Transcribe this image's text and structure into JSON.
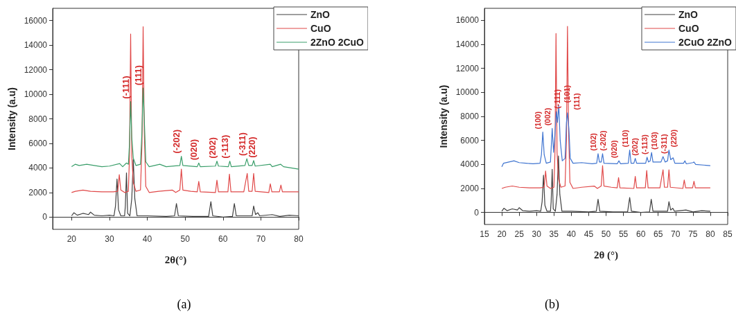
{
  "chart_data": [
    {
      "type": "line",
      "xlabel": "2θ(°)",
      "ylabel": "Intensity (a.u)",
      "xlim": [
        15,
        80
      ],
      "xticks": [
        20,
        30,
        40,
        50,
        60,
        70,
        80
      ],
      "ylim": [
        -1000,
        17000
      ],
      "yticks": [
        0,
        2000,
        4000,
        6000,
        8000,
        10000,
        12000,
        14000,
        16000
      ],
      "legend": "top right",
      "marker": "none",
      "series": [
        {
          "name": "ZnO",
          "color": "#404040",
          "x": [
            20,
            20.6,
            21.5,
            23,
            24.5,
            25,
            26,
            28,
            30,
            31.2,
            31.6,
            32.0,
            32.4,
            33,
            34.0,
            34.2,
            34.5,
            34.8,
            35.4,
            35.9,
            36.3,
            36.7,
            37.3,
            40,
            45,
            47.2,
            47.7,
            48.2,
            52,
            56.2,
            56.8,
            57.3,
            60,
            62.5,
            63.0,
            63.5,
            66,
            67.7,
            68.1,
            68.6,
            69.2,
            69.7,
            73,
            75,
            77.5,
            80
          ],
          "values": [
            100,
            350,
            150,
            300,
            200,
            400,
            150,
            100,
            150,
            100,
            900,
            3100,
            600,
            100,
            100,
            900,
            3600,
            300,
            100,
            1500,
            4700,
            1500,
            100,
            100,
            50,
            100,
            1100,
            100,
            50,
            50,
            1250,
            100,
            0,
            50,
            1100,
            100,
            100,
            100,
            900,
            200,
            350,
            100,
            200,
            50,
            150,
            100
          ]
        },
        {
          "name": "CuO",
          "color": "#e04848",
          "x": [
            20,
            21,
            23,
            25,
            28,
            31,
            32.2,
            32.6,
            33.0,
            34,
            35.0,
            35.3,
            35.6,
            35.9,
            36.3,
            37,
            38.2,
            38.6,
            38.9,
            39.2,
            39.6,
            40.5,
            43,
            46.6,
            47.5,
            48.6,
            49.0,
            49.4,
            51.5,
            53.2,
            53.6,
            54.0,
            58.0,
            58.4,
            58.8,
            61.3,
            61.7,
            62.1,
            65.5,
            66.0,
            66.4,
            66.8,
            67.7,
            68.1,
            68.5,
            72.1,
            72.5,
            72.9,
            74.9,
            75.3,
            75.7,
            80
          ],
          "values": [
            2000,
            2100,
            2200,
            2100,
            2050,
            2050,
            2100,
            3450,
            2200,
            2000,
            2100,
            5000,
            14900,
            5000,
            2800,
            2100,
            2200,
            6000,
            15500,
            7000,
            2500,
            2000,
            2100,
            2200,
            2000,
            2200,
            3900,
            2200,
            2100,
            2050,
            2900,
            2050,
            2000,
            3000,
            2050,
            2050,
            3500,
            2050,
            2050,
            2900,
            3550,
            2100,
            2100,
            3550,
            2100,
            2000,
            2700,
            2050,
            2050,
            2600,
            2050,
            2050
          ]
        },
        {
          "name": "2ZnO 2CuO",
          "color": "#3a9e6a",
          "x": [
            20,
            21,
            22,
            24,
            26,
            28,
            30,
            32.7,
            33.5,
            34.5,
            35.0,
            35.3,
            35.6,
            35.9,
            36.3,
            37,
            38.2,
            38.6,
            38.9,
            39.2,
            39.6,
            40.5,
            43.3,
            45,
            48.6,
            49.0,
            49.4,
            53.2,
            53.6,
            54,
            58.0,
            58.4,
            58.8,
            61.4,
            61.8,
            62.2,
            65.8,
            66.3,
            66.8,
            67.7,
            68.1,
            68.5,
            72.5,
            73,
            75.2,
            76,
            80
          ],
          "values": [
            4100,
            4300,
            4200,
            4300,
            4200,
            4100,
            4150,
            4350,
            4100,
            4400,
            4300,
            6000,
            9400,
            6500,
            4800,
            4200,
            4300,
            7000,
            10500,
            8000,
            4500,
            4100,
            4300,
            4100,
            4200,
            4950,
            4200,
            4100,
            4400,
            4100,
            4150,
            4550,
            4150,
            4100,
            4550,
            4100,
            4200,
            4750,
            4200,
            4200,
            4600,
            4150,
            4300,
            4100,
            4300,
            4100,
            3900
          ]
        }
      ],
      "annotations": [
        {
          "text": "(-111)",
          "x": 35.6,
          "y": 9400
        },
        {
          "text": "(111)",
          "x": 38.9,
          "y": 10500
        },
        {
          "text": "(-202)",
          "x": 49.0,
          "y": 4950
        },
        {
          "text": "(020)",
          "x": 53.6,
          "y": 4400
        },
        {
          "text": "(202)",
          "x": 58.4,
          "y": 4550
        },
        {
          "text": "(-113)",
          "x": 61.8,
          "y": 4550
        },
        {
          "text": "(-311)",
          "x": 66.3,
          "y": 4750
        },
        {
          "text": "(220)",
          "x": 68.1,
          "y": 4600
        },
        "(a)"
      ]
    },
    {
      "type": "line",
      "xlabel": "2θ (°)",
      "ylabel": "Intensity (a.u)",
      "xlim": [
        15,
        85
      ],
      "xticks": [
        15,
        20,
        25,
        30,
        35,
        40,
        45,
        50,
        55,
        60,
        65,
        70,
        75,
        80,
        85
      ],
      "ylim": [
        -1000,
        17000
      ],
      "yticks": [
        0,
        2000,
        4000,
        6000,
        8000,
        10000,
        12000,
        14000,
        16000
      ],
      "legend": "top right",
      "marker": "none",
      "series": [
        {
          "name": "ZnO",
          "color": "#404040",
          "x": [
            20,
            20.6,
            21.5,
            23,
            24.5,
            25,
            26,
            28,
            30,
            31.2,
            31.6,
            32.0,
            32.4,
            33,
            34.0,
            34.2,
            34.5,
            34.8,
            35.4,
            35.9,
            36.3,
            36.7,
            37.3,
            40,
            45,
            47.2,
            47.7,
            48.2,
            52,
            56.2,
            56.8,
            57.3,
            60,
            62.5,
            63.0,
            63.5,
            66,
            67.7,
            68.1,
            68.6,
            69.2,
            69.7,
            73,
            75,
            77.5,
            80
          ],
          "values": [
            100,
            350,
            150,
            300,
            200,
            400,
            150,
            100,
            150,
            100,
            900,
            3100,
            600,
            100,
            100,
            900,
            3600,
            300,
            100,
            1500,
            4700,
            1500,
            100,
            100,
            50,
            100,
            1100,
            100,
            50,
            50,
            1250,
            100,
            0,
            50,
            1100,
            100,
            100,
            100,
            900,
            200,
            350,
            100,
            200,
            50,
            150,
            100
          ]
        },
        {
          "name": "CuO",
          "color": "#e04848",
          "x": [
            20,
            21,
            23,
            25,
            28,
            31,
            32.2,
            32.6,
            33.0,
            34,
            35.0,
            35.3,
            35.6,
            35.9,
            36.3,
            37,
            38.2,
            38.6,
            38.9,
            39.2,
            39.6,
            40.5,
            43,
            46.6,
            47.5,
            48.6,
            49.0,
            49.4,
            51.5,
            53.2,
            53.6,
            54.0,
            58.0,
            58.4,
            58.8,
            61.3,
            61.7,
            62.1,
            65.5,
            66.0,
            66.4,
            66.8,
            67.7,
            68.1,
            68.5,
            72.1,
            72.5,
            72.9,
            74.9,
            75.3,
            75.7,
            80
          ],
          "values": [
            2000,
            2100,
            2200,
            2100,
            2050,
            2050,
            2100,
            3450,
            2200,
            2000,
            2100,
            5000,
            14900,
            5000,
            2800,
            2100,
            2200,
            6000,
            15500,
            7000,
            2500,
            2000,
            2100,
            2200,
            2000,
            2200,
            3900,
            2200,
            2100,
            2050,
            2900,
            2050,
            2000,
            3000,
            2050,
            2050,
            3500,
            2050,
            2050,
            2900,
            3550,
            2100,
            2100,
            3550,
            2100,
            2000,
            2700,
            2050,
            2050,
            2600,
            2050,
            2050
          ]
        },
        {
          "name": "2CuO 2ZnO",
          "color": "#3f74d0",
          "x": [
            20,
            20.5,
            22,
            23.5,
            25,
            27,
            29,
            31.0,
            31.4,
            31.8,
            32.2,
            32.8,
            34.0,
            34.5,
            34.9,
            35.3,
            35.7,
            36.0,
            36.4,
            36.8,
            37.4,
            38.2,
            38.6,
            38.9,
            39.3,
            39.7,
            40.5,
            43,
            46,
            47.3,
            47.7,
            48.1,
            48.6,
            49.0,
            49.4,
            53.2,
            53.7,
            54.2,
            56.4,
            56.8,
            57.2,
            58.0,
            58.4,
            58.8,
            61.4,
            61.8,
            62.2,
            62.7,
            63.1,
            63.5,
            65.8,
            66.4,
            67.0,
            67.7,
            68.1,
            68.6,
            69.3,
            69.8,
            72.3,
            72.7,
            73.1,
            75.0,
            75.3,
            75.8,
            80
          ],
          "values": [
            3800,
            4100,
            4200,
            4300,
            4150,
            4100,
            4050,
            4100,
            4800,
            6700,
            4800,
            4100,
            4200,
            7000,
            5000,
            6500,
            8400,
            7500,
            8900,
            6000,
            4300,
            4500,
            7500,
            8300,
            7000,
            4500,
            4100,
            4150,
            4050,
            4100,
            4900,
            4200,
            4200,
            4900,
            4100,
            4050,
            4300,
            4050,
            4100,
            5200,
            4100,
            4100,
            4500,
            4100,
            4100,
            4600,
            4200,
            4300,
            5000,
            4200,
            4200,
            4650,
            4200,
            4300,
            5200,
            4400,
            4550,
            4100,
            4100,
            4300,
            4050,
            4150,
            4200,
            4000,
            3900
          ]
        }
      ],
      "annotations": [
        {
          "text": "(100)",
          "x": 31.8,
          "y": 6700
        },
        {
          "text": "(002)",
          "x": 34.5,
          "y": 7000
        },
        {
          "text": "(-111)",
          "x": 35.7,
          "y": 8400
        },
        {
          "text": "(101)",
          "x": 36.4,
          "y": 8900
        },
        {
          "text": "(111)",
          "x": 38.9,
          "y": 8300
        },
        {
          "text": "(102)",
          "x": 47.7,
          "y": 4900
        },
        {
          "text": "(-202)",
          "x": 49.0,
          "y": 4900
        },
        {
          "text": "(020)",
          "x": 53.7,
          "y": 4300
        },
        {
          "text": "(110)",
          "x": 56.8,
          "y": 5200
        },
        {
          "text": "(202)",
          "x": 58.4,
          "y": 4500
        },
        {
          "text": "(-113)",
          "x": 61.8,
          "y": 4600
        },
        {
          "text": "(103)",
          "x": 63.1,
          "y": 5000
        },
        {
          "text": "(-311)",
          "x": 66.4,
          "y": 4650
        },
        {
          "text": "(220)",
          "x": 68.1,
          "y": 5200
        },
        "(b)"
      ]
    }
  ]
}
